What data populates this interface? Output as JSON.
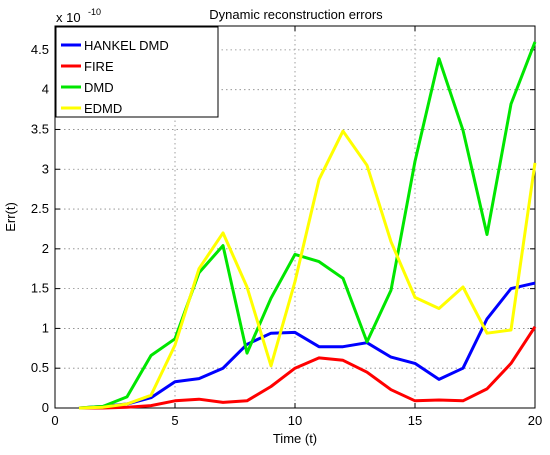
{
  "chart_data": {
    "type": "line",
    "title": "Dynamic reconstruction errors",
    "xlabel": "Time (t)",
    "ylabel": "Err(t)",
    "exponent_label": "x 10",
    "exponent_power": "-10",
    "xlim": [
      0,
      20
    ],
    "ylim": [
      0,
      4.8
    ],
    "x_ticks": [
      0,
      5,
      10,
      15,
      20
    ],
    "x_tick_labels": [
      "0",
      "5",
      "10",
      "15",
      "20"
    ],
    "y_ticks": [
      0,
      0.5,
      1,
      1.5,
      2,
      2.5,
      3,
      3.5,
      4,
      4.5
    ],
    "y_tick_labels": [
      "0",
      "0.5",
      "1",
      "1.5",
      "2",
      "2.5",
      "3",
      "3.5",
      "4",
      "4.5"
    ],
    "grid": true,
    "legend_position": "top-left",
    "x": [
      1,
      2,
      3,
      4,
      5,
      6,
      7,
      8,
      9,
      10,
      11,
      12,
      13,
      14,
      15,
      16,
      17,
      18,
      19,
      20
    ],
    "series": [
      {
        "name": "HANKEL DMD",
        "color": "#0000ff",
        "values": [
          0,
          0.02,
          0.05,
          0.13,
          0.33,
          0.37,
          0.5,
          0.8,
          0.94,
          0.95,
          0.77,
          0.77,
          0.82,
          0.64,
          0.56,
          0.36,
          0.5,
          1.12,
          1.5,
          1.57
        ]
      },
      {
        "name": "FIRE",
        "color": "#ff0000",
        "values": [
          0,
          0,
          0.01,
          0.03,
          0.09,
          0.11,
          0.07,
          0.09,
          0.27,
          0.5,
          0.63,
          0.6,
          0.45,
          0.23,
          0.09,
          0.1,
          0.09,
          0.24,
          0.56,
          1.02
        ]
      },
      {
        "name": "DMD",
        "color": "#00e600",
        "values": [
          0,
          0.02,
          0.14,
          0.66,
          0.87,
          1.7,
          2.04,
          0.69,
          1.38,
          1.93,
          1.84,
          1.63,
          0.83,
          1.48,
          3.1,
          4.39,
          3.49,
          2.18,
          3.82,
          4.6
        ]
      },
      {
        "name": "EDMD",
        "color": "#ffff00",
        "values": [
          0,
          0.01,
          0.05,
          0.16,
          0.79,
          1.75,
          2.2,
          1.52,
          0.53,
          1.59,
          2.87,
          3.48,
          3.05,
          2.09,
          1.39,
          1.25,
          1.52,
          0.94,
          0.98,
          3.08
        ]
      }
    ]
  }
}
